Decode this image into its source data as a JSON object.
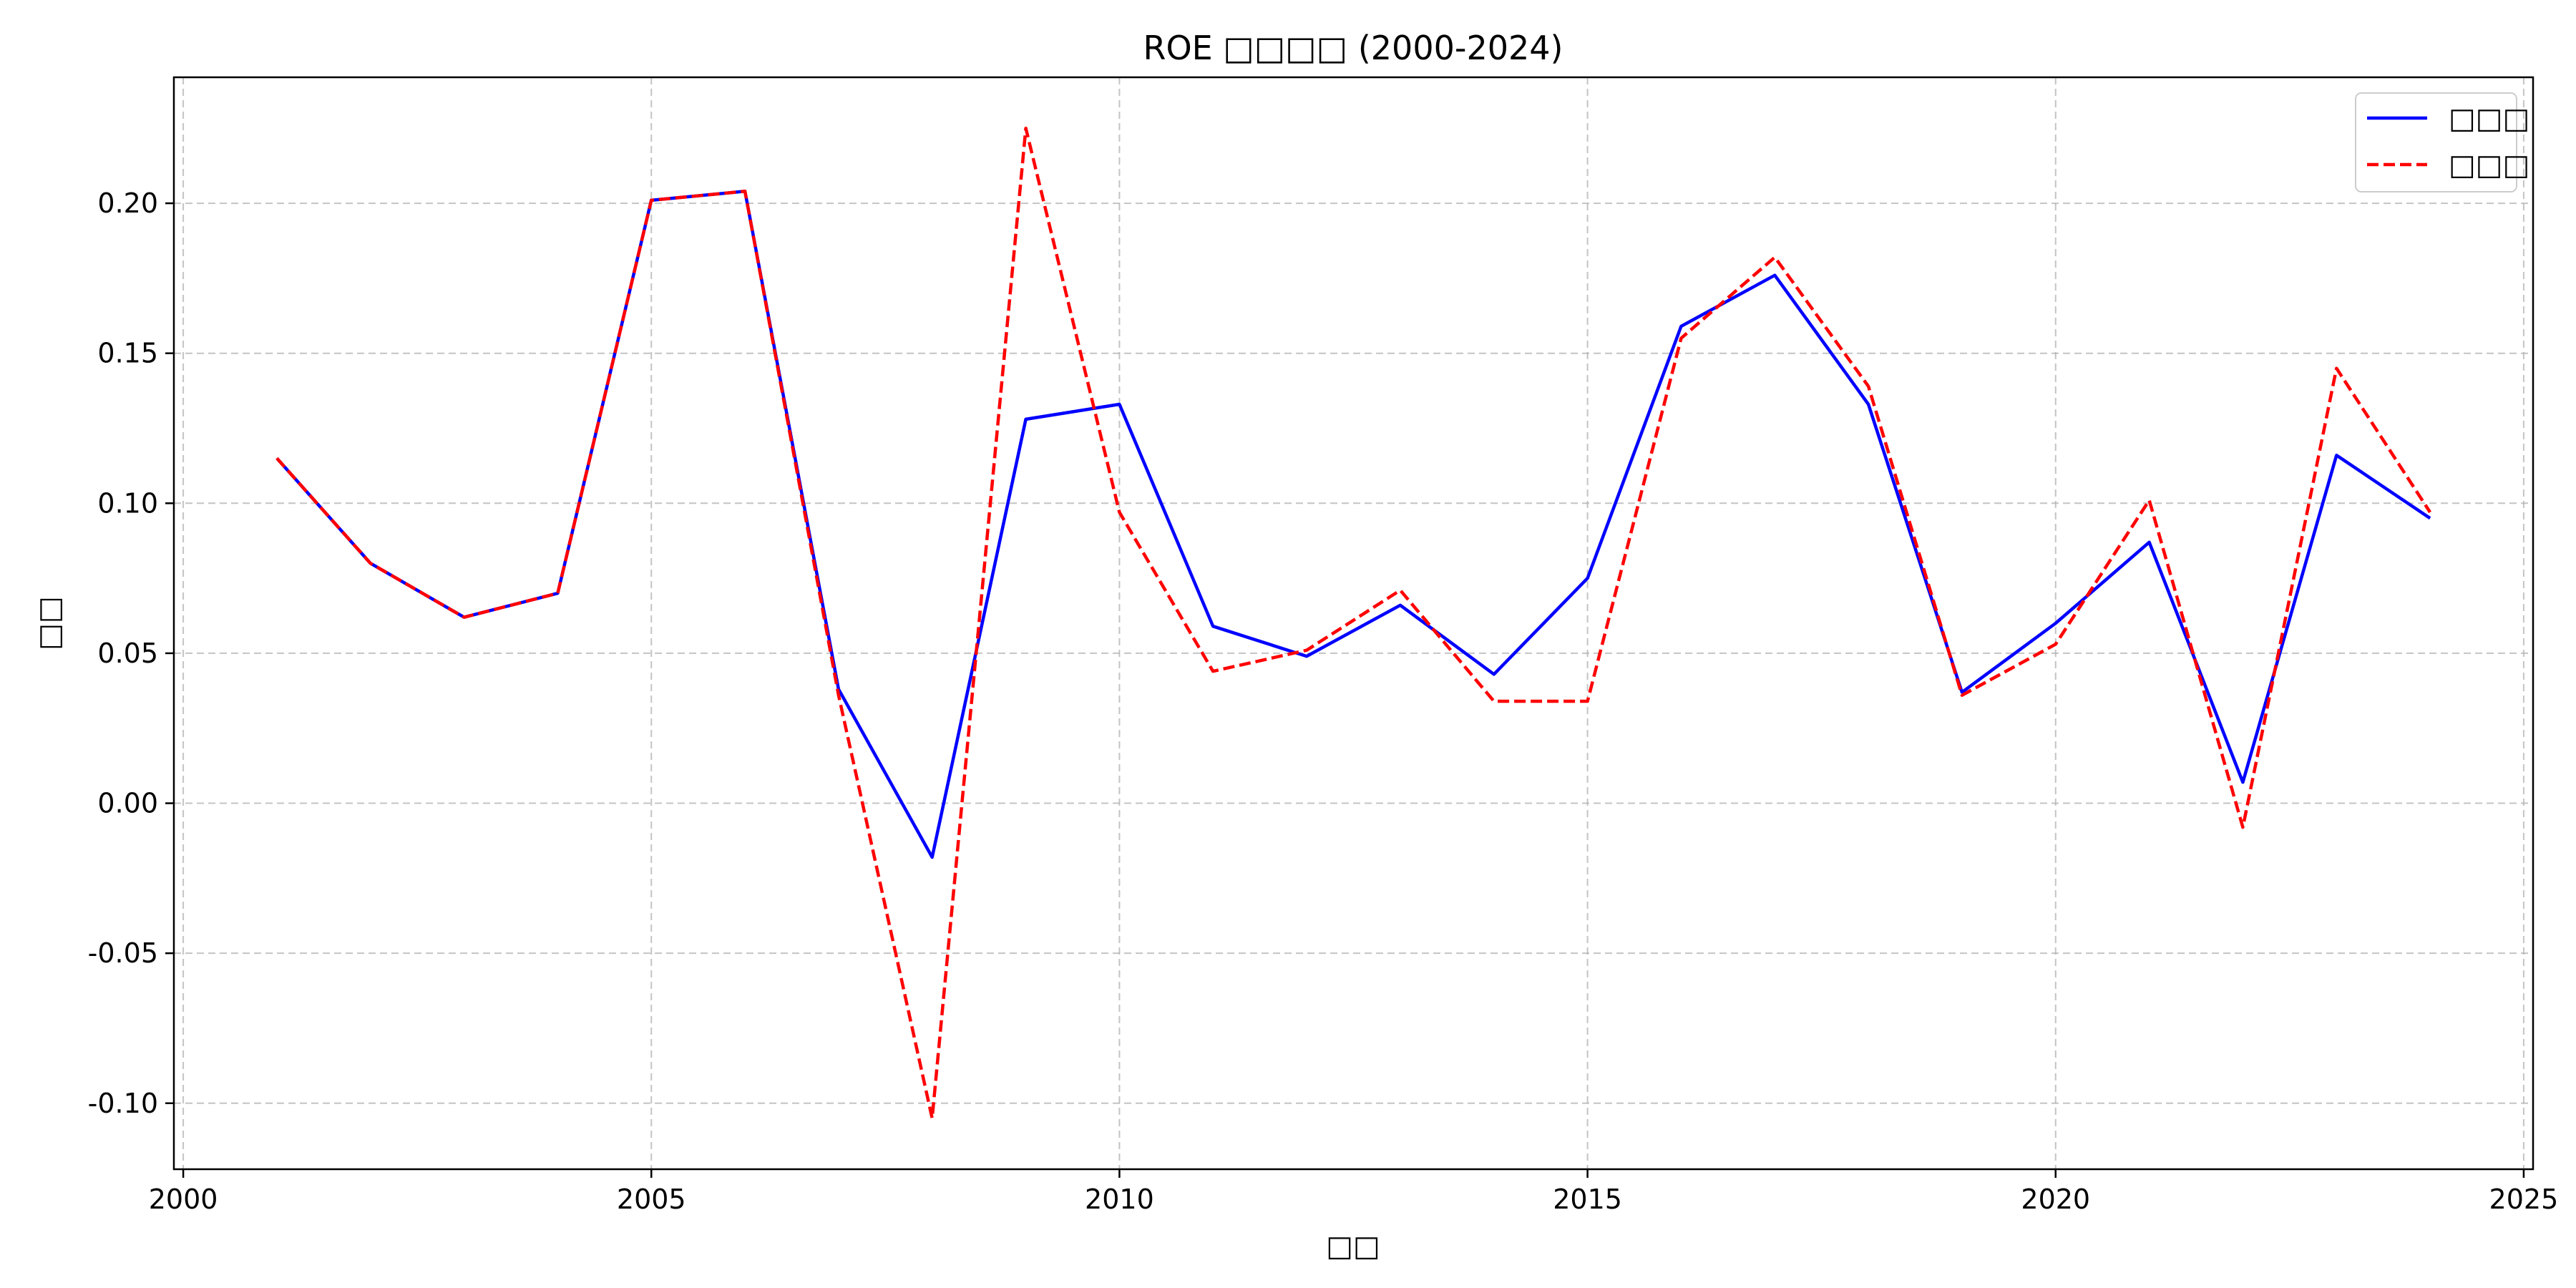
{
  "chart_data": {
    "type": "line",
    "title": "ROE □□□□ (2000-2024)",
    "xlabel": "□□",
    "ylabel": "□□",
    "xlim": [
      1999.9,
      2025.1
    ],
    "ylim": [
      -0.122,
      0.242
    ],
    "x_ticks": [
      2000,
      2005,
      2010,
      2015,
      2020,
      2025
    ],
    "x_tick_labels": [
      "2000",
      "2005",
      "2010",
      "2015",
      "2020",
      "2025"
    ],
    "y_ticks": [
      -0.1,
      -0.05,
      0.0,
      0.05,
      0.1,
      0.15,
      0.2
    ],
    "y_tick_labels": [
      "-0.10",
      "-0.05",
      "0.00",
      "0.05",
      "0.10",
      "0.15",
      "0.20"
    ],
    "grid": true,
    "legend_position": "top-right",
    "x": [
      2001,
      2002,
      2003,
      2004,
      2005,
      2006,
      2007,
      2008,
      2009,
      2010,
      2011,
      2012,
      2013,
      2014,
      2015,
      2016,
      2017,
      2018,
      2019,
      2020,
      2021,
      2022,
      2023,
      2024
    ],
    "series": [
      {
        "name": "□□□",
        "color": "#0000ff",
        "style": "solid",
        "values": [
          0.115,
          0.08,
          0.062,
          0.07,
          0.201,
          0.204,
          0.038,
          -0.018,
          0.128,
          0.133,
          0.059,
          0.049,
          0.066,
          0.043,
          0.075,
          0.159,
          0.176,
          0.133,
          0.037,
          0.06,
          0.087,
          0.007,
          0.116,
          0.095
        ]
      },
      {
        "name": "□□□",
        "color": "#ff0000",
        "style": "dashed",
        "values": [
          0.115,
          0.08,
          0.062,
          0.07,
          0.201,
          0.204,
          0.036,
          -0.105,
          0.225,
          0.097,
          0.044,
          0.051,
          0.071,
          0.034,
          0.034,
          0.155,
          0.182,
          0.139,
          0.036,
          0.053,
          0.101,
          -0.008,
          0.145,
          0.097
        ]
      }
    ]
  }
}
